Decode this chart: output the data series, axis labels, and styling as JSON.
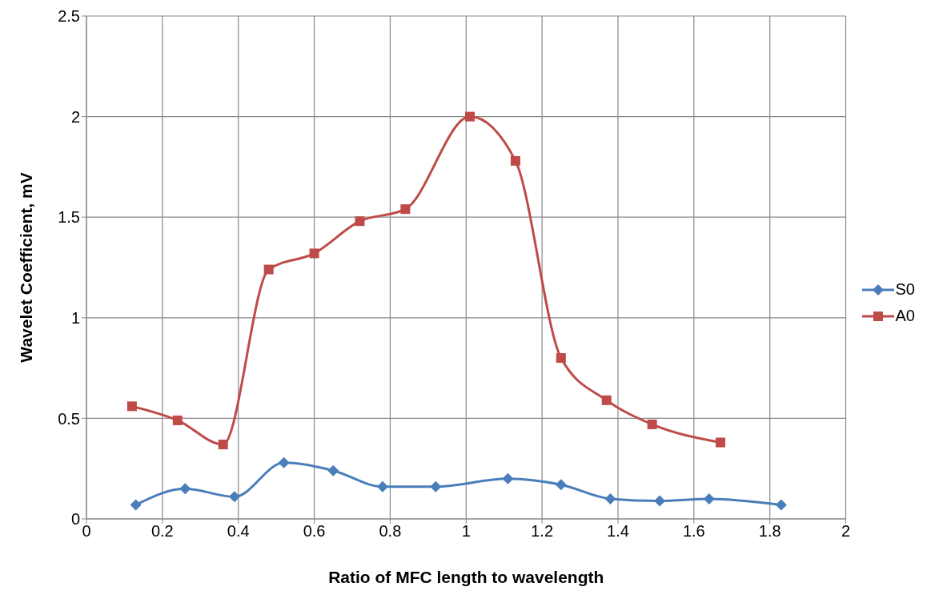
{
  "chart_data": {
    "type": "line",
    "xlabel": "Ratio of MFC length to wavelength",
    "ylabel": "Wavelet Coefficient, mV",
    "xlim": [
      0,
      2
    ],
    "xticks": [
      0,
      0.2,
      0.4,
      0.6,
      0.8,
      1,
      1.2,
      1.4,
      1.6,
      1.8,
      2
    ],
    "ylim": [
      0,
      2.5
    ],
    "yticks": [
      0,
      0.5,
      1,
      1.5,
      2,
      2.5
    ],
    "grid": true,
    "legend": "right",
    "line_style": "solid",
    "series": [
      {
        "name": "S0",
        "color": "#4a7ebb",
        "marker": "diamond",
        "x": [
          0.13,
          0.26,
          0.39,
          0.52,
          0.65,
          0.78,
          0.92,
          1.11,
          1.25,
          1.38,
          1.51,
          1.64,
          1.83
        ],
        "values": [
          0.07,
          0.15,
          0.11,
          0.28,
          0.24,
          0.16,
          0.16,
          0.2,
          0.17,
          0.1,
          0.09,
          0.1,
          0.07
        ]
      },
      {
        "name": "A0",
        "color": "#be4b48",
        "marker": "square",
        "x": [
          0.12,
          0.24,
          0.36,
          0.48,
          0.6,
          0.72,
          0.84,
          1.01,
          1.13,
          1.25,
          1.37,
          1.49,
          1.67
        ],
        "values": [
          0.56,
          0.49,
          0.37,
          1.24,
          1.32,
          1.48,
          1.54,
          2.0,
          1.78,
          0.8,
          0.59,
          0.47,
          0.38
        ]
      }
    ]
  }
}
